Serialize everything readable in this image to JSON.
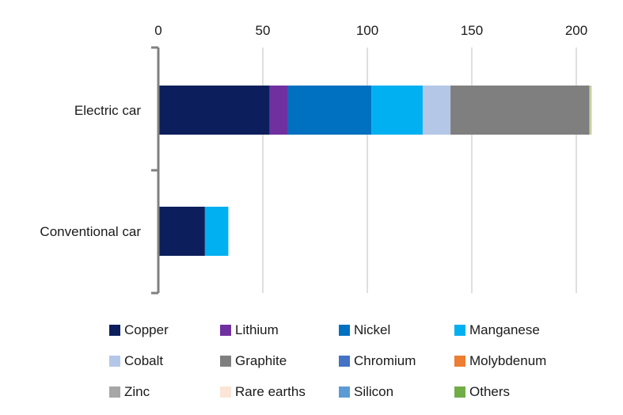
{
  "chart_data": {
    "type": "bar",
    "orientation": "horizontal",
    "stacked": true,
    "categories": [
      "Electric car",
      "Conventional car"
    ],
    "xlim": [
      0,
      210
    ],
    "xticks": [
      0,
      50,
      100,
      150,
      200
    ],
    "x_axis_position": "top",
    "grid": true,
    "legend_position": "bottom",
    "series": [
      {
        "name": "Copper",
        "color": "#0c1f5c",
        "values": [
          53.2,
          22.3
        ]
      },
      {
        "name": "Lithium",
        "color": "#7030a0",
        "values": [
          8.9,
          0
        ]
      },
      {
        "name": "Nickel",
        "color": "#0070c0",
        "values": [
          39.9,
          0
        ]
      },
      {
        "name": "Manganese",
        "color": "#00b0f0",
        "values": [
          24.5,
          11.2
        ]
      },
      {
        "name": "Cobalt",
        "color": "#b4c7e7",
        "values": [
          13.3,
          0
        ]
      },
      {
        "name": "Graphite",
        "color": "#7f7f7f",
        "values": [
          66.3,
          0
        ]
      },
      {
        "name": "Chromium",
        "color": "#4472c4",
        "values": [
          0.1,
          0
        ]
      },
      {
        "name": "Molybdenum",
        "color": "#ed7d31",
        "values": [
          0.1,
          0
        ]
      },
      {
        "name": "Zinc",
        "color": "#a6a6a6",
        "values": [
          0.1,
          0
        ]
      },
      {
        "name": "Rare earths",
        "color": "#fbe5d6",
        "values": [
          0.5,
          0
        ]
      },
      {
        "name": "Silicon",
        "color": "#5b9bd5",
        "values": [
          0,
          0
        ]
      },
      {
        "name": "Others",
        "color": "#70ad47",
        "values": [
          0.3,
          0
        ]
      }
    ]
  }
}
